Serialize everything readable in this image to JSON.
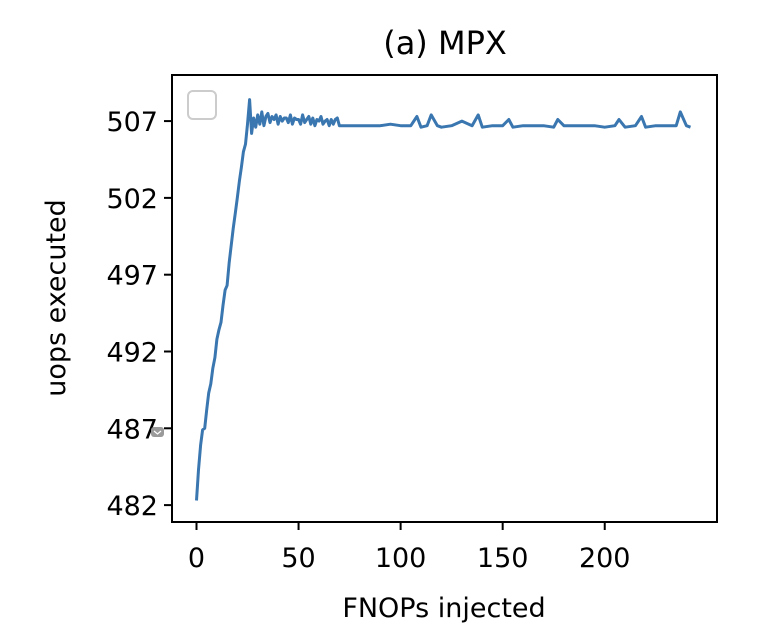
{
  "chart_data": {
    "type": "line",
    "title": "(a) MPX",
    "xlabel": "FNOPs injected",
    "ylabel": "uops executed",
    "xlim": [
      -12,
      255
    ],
    "ylim": [
      480.9,
      510.0
    ],
    "xticks": [
      0,
      50,
      100,
      150,
      200
    ],
    "yticks": [
      482,
      487,
      492,
      497,
      502,
      507
    ],
    "grid": false,
    "legend": "top-left (empty)",
    "series": [
      {
        "color": "#3a76af",
        "x": [
          0,
          1,
          2,
          3,
          4,
          5,
          6,
          7,
          8,
          9,
          10,
          11,
          12,
          13,
          14,
          15,
          16,
          17,
          18,
          19,
          20,
          21,
          22,
          23,
          24,
          25,
          26,
          27,
          28,
          29,
          30,
          31,
          32,
          33,
          34,
          35,
          36,
          37,
          38,
          39,
          40,
          41,
          42,
          43,
          44,
          45,
          46,
          47,
          48,
          49,
          50,
          51,
          52,
          53,
          54,
          55,
          56,
          57,
          58,
          59,
          60,
          61,
          62,
          63,
          64,
          65,
          66,
          67,
          68,
          69,
          70,
          72,
          75,
          80,
          85,
          90,
          95,
          100,
          105,
          108,
          110,
          113,
          115,
          118,
          120,
          125,
          130,
          135,
          138,
          140,
          145,
          150,
          153,
          155,
          160,
          165,
          170,
          175,
          177,
          180,
          185,
          190,
          195,
          200,
          205,
          207,
          210,
          215,
          218,
          220,
          225,
          230,
          235,
          237,
          240,
          242
        ],
        "y": [
          482.3,
          484.3,
          485.9,
          486.9,
          487.0,
          488.2,
          489.3,
          489.9,
          490.9,
          491.6,
          492.8,
          493.4,
          493.9,
          495.0,
          496.0,
          496.3,
          497.8,
          498.9,
          500.0,
          501.0,
          502.0,
          503.1,
          504.0,
          505.0,
          505.5,
          506.8,
          508.4,
          506.2,
          507.2,
          506.6,
          507.4,
          506.8,
          507.6,
          506.7,
          507.3,
          507.5,
          506.9,
          507.3,
          507.1,
          507.4,
          506.8,
          507.3,
          507.0,
          507.2,
          507.2,
          506.9,
          507.4,
          506.8,
          507.2,
          507.1,
          507.1,
          506.8,
          507.4,
          506.9,
          507.1,
          507.3,
          506.8,
          507.2,
          506.7,
          507.1,
          507.0,
          507.3,
          506.8,
          507.0,
          507.1,
          506.7,
          507.1,
          506.8,
          507.1,
          507.2,
          506.7,
          506.7,
          506.7,
          506.7,
          506.7,
          506.7,
          506.8,
          506.7,
          506.7,
          507.3,
          506.6,
          506.7,
          507.4,
          506.7,
          506.6,
          506.7,
          507.0,
          506.7,
          507.4,
          506.6,
          506.7,
          506.7,
          507.1,
          506.6,
          506.7,
          506.7,
          506.7,
          506.6,
          507.1,
          506.7,
          506.7,
          506.7,
          506.7,
          506.6,
          506.7,
          507.1,
          506.6,
          506.7,
          507.3,
          506.6,
          506.7,
          506.7,
          506.7,
          507.6,
          506.7,
          506.6
        ]
      }
    ]
  }
}
